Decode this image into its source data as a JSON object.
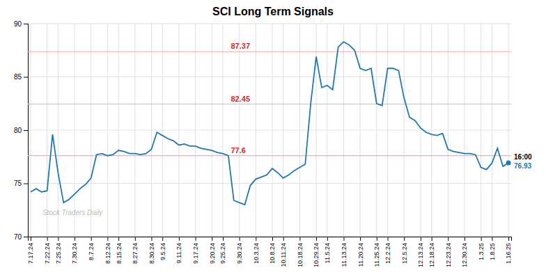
{
  "chart_data": {
    "type": "line",
    "title": "SCI Long Term Signals",
    "categories": [
      "7.17.24",
      null,
      null,
      "7.22.24",
      null,
      "7.25.24",
      null,
      null,
      "7.30.24",
      null,
      null,
      "8.7.24",
      null,
      null,
      "8.12.24",
      null,
      "8.15.24",
      null,
      null,
      "8.27.24",
      null,
      null,
      "8.30.24",
      null,
      "9.5.24",
      null,
      null,
      "9.11.24",
      null,
      null,
      "9.17.24",
      null,
      null,
      "9.20.24",
      null,
      "9.25.24",
      null,
      null,
      "9.30.24",
      null,
      null,
      "10.3.24",
      null,
      null,
      "10.8.24",
      null,
      "10.11.24",
      null,
      null,
      "10.18.24",
      null,
      null,
      "10.29.24",
      null,
      "11.5.24",
      null,
      null,
      "11.13.24",
      null,
      null,
      "11.20.24",
      null,
      null,
      "11.25.24",
      null,
      "12.2.24",
      null,
      null,
      "12.5.24",
      null,
      null,
      "12.13.24",
      null,
      "12.18.24",
      null,
      null,
      "12.23.24",
      null,
      null,
      "12.30.24",
      null,
      null,
      "1.3.25",
      null,
      "1.8.25",
      null,
      null,
      "1.16.25"
    ],
    "values": [
      74.2,
      74.5,
      74.2,
      74.3,
      79.6,
      76.0,
      73.2,
      73.5,
      74.0,
      74.5,
      74.9,
      75.5,
      77.7,
      77.8,
      77.6,
      77.7,
      78.1,
      78.0,
      77.8,
      77.8,
      77.7,
      77.8,
      78.2,
      79.8,
      79.5,
      79.2,
      79.0,
      78.6,
      78.7,
      78.5,
      78.5,
      78.3,
      78.2,
      78.1,
      77.9,
      77.8,
      77.6,
      73.4,
      73.2,
      73.0,
      74.8,
      75.4,
      75.6,
      75.8,
      76.4,
      76.0,
      75.5,
      75.8,
      76.2,
      76.5,
      76.8,
      82.5,
      86.9,
      84.0,
      84.2,
      83.8,
      87.8,
      88.3,
      88.0,
      87.5,
      85.8,
      85.6,
      85.8,
      82.5,
      82.3,
      85.8,
      85.8,
      85.6,
      83.0,
      81.2,
      80.9,
      80.2,
      79.8,
      79.6,
      79.5,
      79.7,
      78.2,
      78.0,
      77.9,
      77.8,
      77.8,
      77.7,
      76.5,
      76.3,
      76.9,
      78.3,
      76.6,
      76.93
    ],
    "ylim": [
      70,
      90
    ],
    "yticks": [
      70,
      75,
      80,
      85,
      90
    ],
    "grid": true,
    "annotations": [
      {
        "type": "hline",
        "y": 87.37,
        "label": "87.37",
        "color": "#ffaaaa"
      },
      {
        "type": "hline",
        "y": 82.45,
        "label": "82.45",
        "color": "#ffaaaa"
      },
      {
        "type": "hline",
        "y": 77.6,
        "label": "77.6",
        "color": "#ffaaaa"
      },
      {
        "type": "end_label",
        "text": "16:00"
      },
      {
        "type": "end_value",
        "y": 76.93,
        "label": "76.93"
      },
      {
        "type": "watermark",
        "text": "Stock Traders Daily"
      }
    ]
  }
}
